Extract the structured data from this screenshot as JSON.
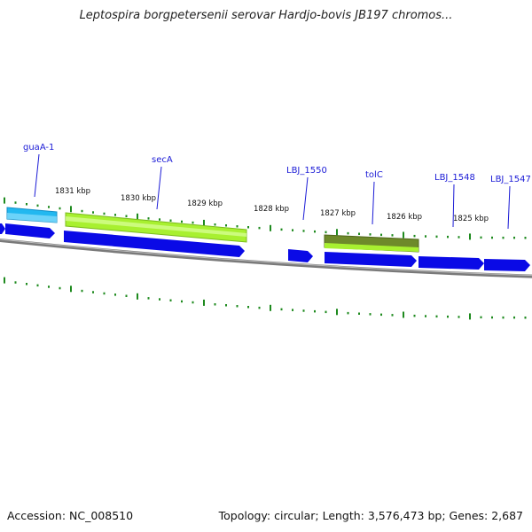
{
  "title": "Leptospira borgpetersenii serovar Hardjo-bovis JB197 chromos...",
  "footer": {
    "accession": "Accession: NC_008510",
    "topology": "Topology: circular; Length: 3,576,473 bp; Genes: 2,687"
  },
  "colors": {
    "gene_forward": "#0a0ae6",
    "gene_cyan": "#22b8f0",
    "gene_lime": "#a8f030",
    "gene_olive": "#6e8a2a",
    "backbone": "#7a7a7a",
    "tick_green": "#1e8a1e",
    "label_blue": "#1b1bd6"
  },
  "kbp_labels": [
    "1831 kbp",
    "1830 kbp",
    "1829 kbp",
    "1828 kbp",
    "1827 kbp",
    "1826 kbp",
    "1825 kbp"
  ],
  "gene_labels": [
    "guaA-1",
    "secA",
    "LBJ_1550",
    "tolC",
    "LBJ_1548",
    "LBJ_1547"
  ]
}
